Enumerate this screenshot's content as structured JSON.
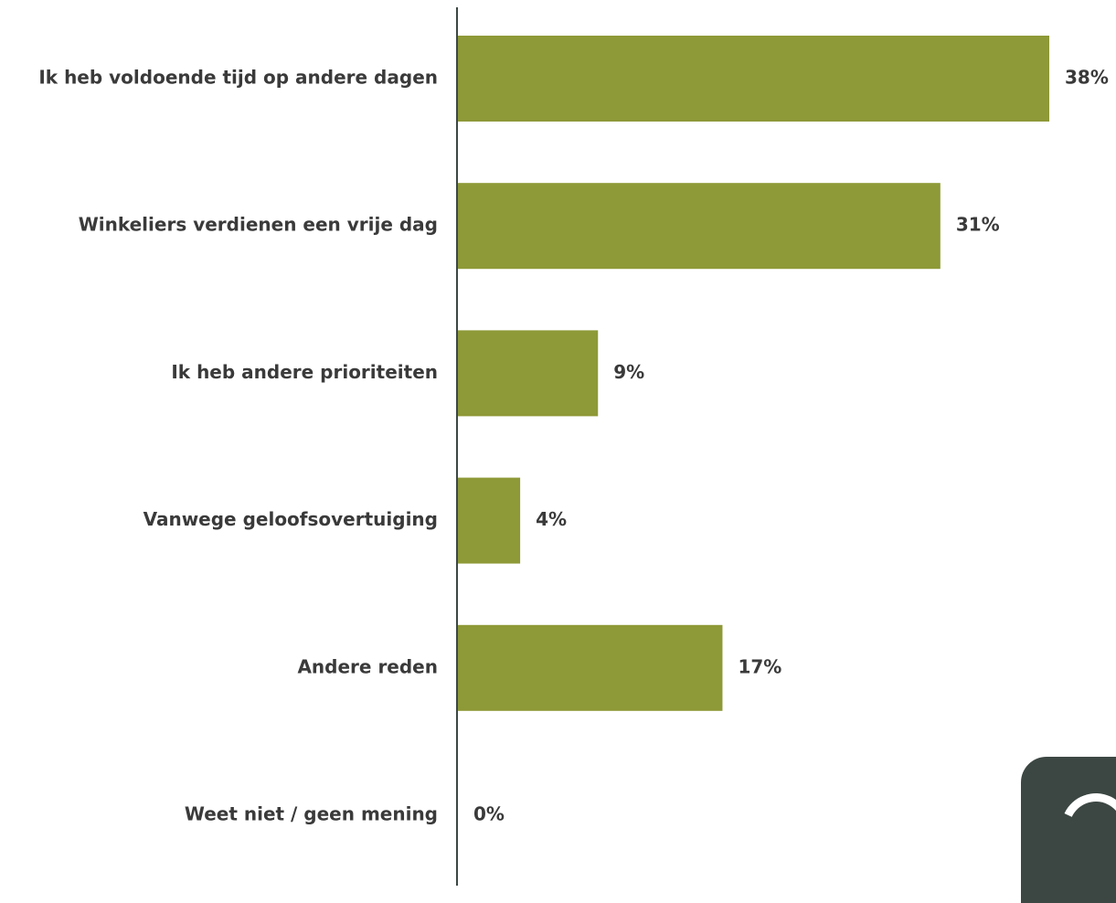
{
  "chart_data": {
    "type": "bar",
    "orientation": "horizontal",
    "categories": [
      "Ik heb voldoende tijd op andere dagen",
      "Winkeliers verdienen een vrije dag",
      "Ik heb andere prioriteiten",
      "Vanwege geloofsovertuiging",
      "Andere reden",
      "Weet niet / geen mening"
    ],
    "values": [
      38,
      31,
      9,
      4,
      17,
      0
    ],
    "value_labels": [
      "38%",
      "31%",
      "9%",
      "4%",
      "17%",
      "0%"
    ],
    "unit": "%",
    "xlim": [
      0,
      38
    ],
    "grid": false,
    "bar_color": "#8e9937",
    "axis_color": "#3c4743"
  },
  "logo": {
    "name": "brand-logo-icon",
    "color": "#3c4743"
  }
}
